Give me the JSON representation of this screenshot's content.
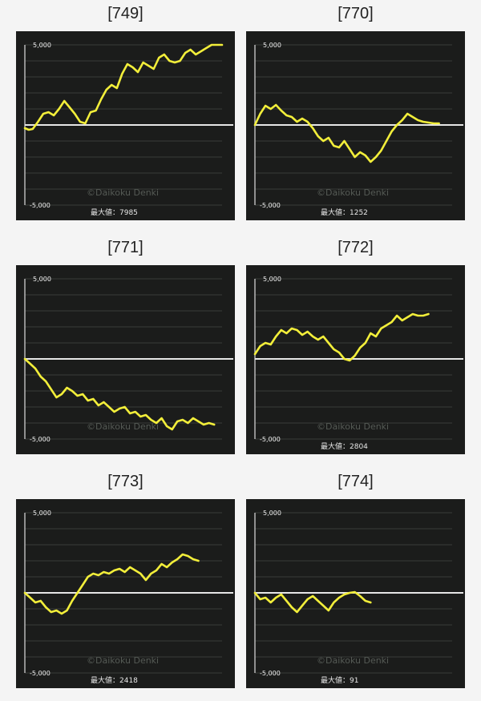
{
  "colors": {
    "background": "#f4f4f4",
    "panel": "#1b1c1b",
    "line": "#f2ee3a",
    "grid": "#3a3c3a",
    "zero": "#e6e6e6"
  },
  "watermark": "©Daikoku Denki",
  "chart_data": [
    {
      "type": "line",
      "label": "[749]",
      "ylim": [
        -5000,
        5000
      ],
      "ytick_labels": [
        "5,000",
        "-5,000"
      ],
      "max_label": "最大値：7985",
      "x": [
        0,
        3,
        6,
        10,
        14,
        18,
        22,
        26,
        30,
        34,
        38,
        42,
        46,
        50,
        54,
        58,
        62,
        66,
        70,
        74,
        78,
        82,
        86,
        90,
        94,
        98,
        102,
        106,
        110,
        114,
        118,
        122,
        126,
        130,
        134,
        138,
        142,
        146,
        150
      ],
      "y": [
        -200,
        -300,
        -250,
        200,
        700,
        800,
        600,
        1000,
        1500,
        1100,
        700,
        200,
        100,
        800,
        900,
        1600,
        2200,
        2500,
        2300,
        3200,
        3800,
        3600,
        3300,
        3900,
        3700,
        3500,
        4200,
        4400,
        4000,
        3900,
        4000,
        4500,
        4700,
        4400,
        4600,
        4800,
        5000,
        5000,
        5000
      ]
    },
    {
      "type": "line",
      "label": "[770]",
      "ylim": [
        -5000,
        5000
      ],
      "ytick_labels": [
        "5,000",
        "-5,000"
      ],
      "max_label": "最大値：1252",
      "x": [
        0,
        4,
        8,
        12,
        16,
        20,
        24,
        28,
        32,
        36,
        40,
        44,
        48,
        52,
        56,
        60,
        64,
        68,
        72,
        76,
        80,
        84,
        88,
        92,
        96,
        100,
        104,
        108,
        112,
        116,
        120,
        124,
        128,
        132,
        136,
        140
      ],
      "y": [
        0,
        700,
        1200,
        1000,
        1250,
        900,
        600,
        500,
        200,
        400,
        200,
        -200,
        -700,
        -1000,
        -800,
        -1300,
        -1400,
        -1000,
        -1500,
        -2000,
        -1700,
        -1900,
        -2300,
        -2000,
        -1600,
        -1000,
        -400,
        0,
        300,
        700,
        500,
        300,
        200,
        150,
        100,
        100
      ]
    },
    {
      "type": "line",
      "label": "[771]",
      "ylim": [
        -5000,
        5000
      ],
      "ytick_labels": [
        "5,000",
        "-5,000"
      ],
      "max_label": "",
      "x": [
        0,
        4,
        8,
        12,
        16,
        20,
        24,
        28,
        32,
        36,
        40,
        44,
        48,
        52,
        56,
        60,
        64,
        68,
        72,
        76,
        80,
        84,
        88,
        92,
        96,
        100,
        104,
        108,
        112,
        116,
        120,
        124,
        128,
        132,
        136,
        140,
        144
      ],
      "y": [
        0,
        -300,
        -600,
        -1100,
        -1400,
        -1900,
        -2400,
        -2200,
        -1800,
        -2000,
        -2300,
        -2200,
        -2600,
        -2500,
        -2900,
        -2700,
        -3000,
        -3300,
        -3100,
        -3000,
        -3400,
        -3300,
        -3600,
        -3500,
        -3800,
        -4000,
        -3700,
        -4200,
        -4400,
        -3900,
        -3800,
        -4000,
        -3700,
        -3900,
        -4100,
        -4000,
        -4100
      ]
    },
    {
      "type": "line",
      "label": "[772]",
      "ylim": [
        -5000,
        5000
      ],
      "ytick_labels": [
        "5,000",
        "-5,000"
      ],
      "max_label": "最大値：2804",
      "x": [
        0,
        4,
        8,
        12,
        16,
        20,
        24,
        28,
        32,
        36,
        40,
        44,
        48,
        52,
        56,
        60,
        64,
        68,
        72,
        76,
        80,
        84,
        88,
        92,
        96,
        100,
        104,
        108,
        112,
        116,
        120,
        124,
        128,
        132
      ],
      "y": [
        300,
        800,
        1000,
        900,
        1400,
        1800,
        1600,
        1900,
        1800,
        1500,
        1700,
        1400,
        1200,
        1400,
        1000,
        600,
        400,
        0,
        -100,
        200,
        700,
        1000,
        1600,
        1400,
        1900,
        2100,
        2300,
        2700,
        2400,
        2600,
        2800,
        2700,
        2700,
        2800
      ]
    },
    {
      "type": "line",
      "label": "[773]",
      "ylim": [
        -5000,
        5000
      ],
      "ytick_labels": [
        "5,000",
        "-5,000"
      ],
      "max_label": "最大値：2418",
      "x": [
        0,
        4,
        8,
        12,
        16,
        20,
        24,
        28,
        32,
        36,
        40,
        44,
        48,
        52,
        56,
        60,
        64,
        68,
        72,
        76,
        80,
        84,
        88,
        92,
        96,
        100,
        104,
        108,
        112,
        116,
        120,
        124,
        128,
        132
      ],
      "y": [
        0,
        -300,
        -600,
        -500,
        -900,
        -1200,
        -1100,
        -1300,
        -1100,
        -500,
        0,
        500,
        1000,
        1200,
        1100,
        1300,
        1200,
        1400,
        1500,
        1300,
        1600,
        1400,
        1200,
        800,
        1200,
        1400,
        1800,
        1600,
        1900,
        2100,
        2400,
        2300,
        2100,
        2000
      ]
    },
    {
      "type": "line",
      "label": "[774]",
      "ylim": [
        -5000,
        5000
      ],
      "ytick_labels": [
        "5,000",
        "-5,000"
      ],
      "max_label": "最大値：91",
      "x": [
        0,
        4,
        8,
        12,
        16,
        20,
        24,
        28,
        32,
        36,
        40,
        44,
        48,
        52,
        56,
        60,
        64,
        68,
        72,
        76,
        80,
        84,
        88
      ],
      "y": [
        0,
        -400,
        -300,
        -600,
        -300,
        -100,
        -500,
        -900,
        -1200,
        -800,
        -400,
        -200,
        -500,
        -800,
        -1100,
        -600,
        -300,
        -100,
        0,
        50,
        -200,
        -500,
        -600
      ]
    }
  ]
}
